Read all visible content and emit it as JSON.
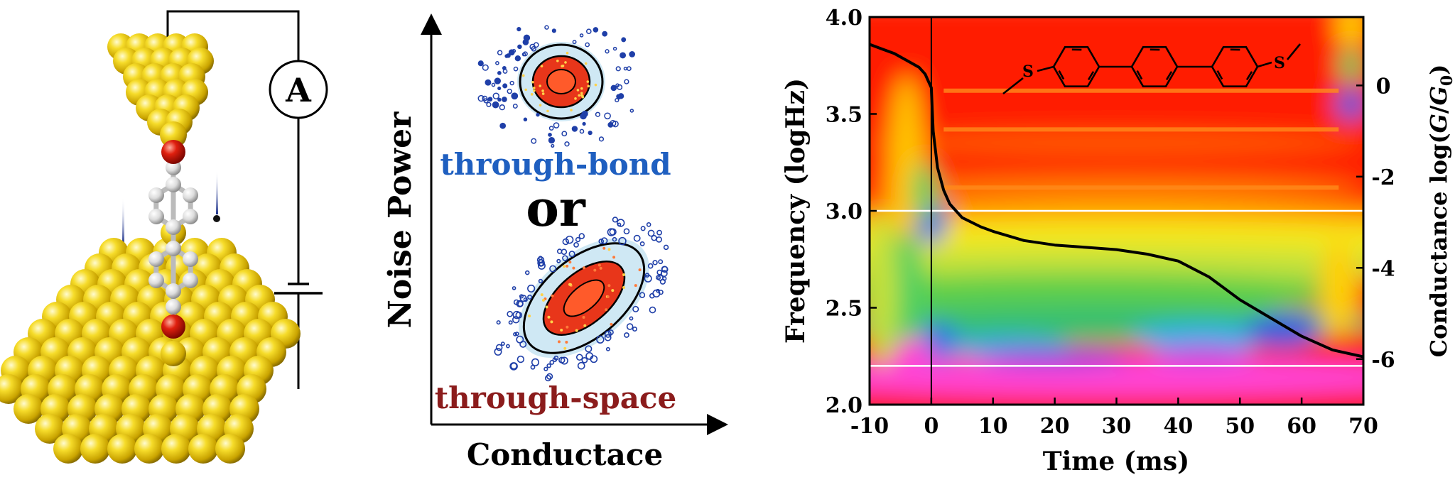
{
  "circuit": {
    "ammeter_label": "A",
    "atom_colors": {
      "gold": "#f2d21b",
      "gold_dark": "#9c7f00",
      "sulfur": "#d0150c",
      "carbon": "#e0e0e0"
    }
  },
  "noise_diagram": {
    "ylabel": "Noise Power",
    "xlabel": "Conductace",
    "label_top": "through-bond",
    "label_or": "or",
    "label_bottom": "through-space",
    "colors": {
      "through_bond": "#1f5fc0",
      "through_space": "#8b1c1c"
    }
  },
  "spectrogram": {
    "ylabel": "Frequency (logHz)",
    "y2label_prefix": "Conductance log(",
    "y2label_G": "G",
    "y2label_slash": "/",
    "y2label_G0": "G",
    "y2label_sub0": "0",
    "y2label_suffix": ")",
    "xlabel": "Time (ms)",
    "molecule_icon": "bis-methylthio-terphenyl-structure",
    "molecule_S_left": "S",
    "molecule_S_right": "S"
  },
  "chart_data": {
    "type": "heatmap",
    "xlabel": "Time (ms)",
    "ylabel": "Frequency (logHz)",
    "y2label": "Conductance log(G/G0)",
    "xlim": [
      -10,
      70
    ],
    "ylim": [
      2.0,
      4.0
    ],
    "y2lim": [
      -7,
      1.5
    ],
    "x_ticks": [
      -10,
      0,
      10,
      20,
      30,
      40,
      50,
      60,
      70
    ],
    "x_tick_labels": [
      "-10",
      "0",
      "10",
      "20",
      "30",
      "40",
      "50",
      "60",
      "70"
    ],
    "y_ticks": [
      2.0,
      2.5,
      3.0,
      3.5,
      4.0
    ],
    "y_tick_labels": [
      "2.0",
      "2.5",
      "3.0",
      "3.5",
      "4.0"
    ],
    "y2_ticks": [
      0,
      -2,
      -4,
      -6
    ],
    "y2_tick_labels": [
      "0",
      "-2",
      "-4",
      "-6"
    ],
    "reference_lines_logHz": [
      3.0,
      2.2
    ],
    "event_line_x": 0,
    "conductance_trace": {
      "x": [
        -10,
        -8,
        -6,
        -4,
        -2,
        -1,
        -0.5,
        0,
        0.3,
        1,
        2,
        3,
        5,
        8,
        10,
        15,
        20,
        25,
        30,
        35,
        40,
        45,
        50,
        55,
        60,
        65,
        70
      ],
      "logG": [
        0.9,
        0.8,
        0.7,
        0.55,
        0.4,
        0.25,
        0.1,
        -0.05,
        -1.0,
        -1.8,
        -2.3,
        -2.6,
        -2.9,
        -3.1,
        -3.2,
        -3.4,
        -3.5,
        -3.55,
        -3.6,
        -3.7,
        -3.85,
        -4.2,
        -4.7,
        -5.1,
        -5.5,
        -5.8,
        -5.95
      ]
    }
  }
}
